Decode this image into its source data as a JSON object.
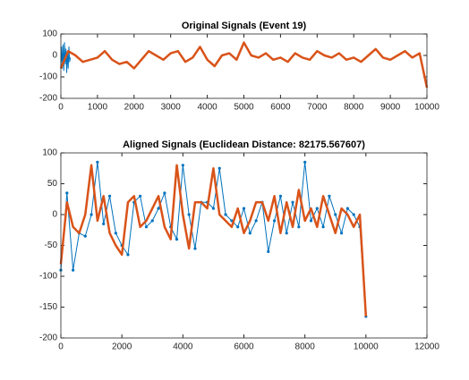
{
  "chart_data": [
    {
      "type": "line",
      "title": "Original Signals (Event 19)",
      "xlim": [
        0,
        10000
      ],
      "xticks": [
        0,
        1000,
        2000,
        3000,
        4000,
        5000,
        6000,
        7000,
        8000,
        9000,
        10000
      ],
      "ylim": [
        -200,
        100
      ],
      "yticks": [
        -200,
        -100,
        0,
        100
      ],
      "series": [
        {
          "color": "#0072bd",
          "width": 1,
          "x": [
            0,
            20,
            40,
            60,
            80,
            100,
            120,
            140,
            160,
            180,
            200,
            220,
            240,
            260
          ],
          "values": [
            -50,
            40,
            -60,
            50,
            -70,
            60,
            -40,
            30,
            -80,
            20,
            -60,
            40,
            -30,
            -10
          ]
        },
        {
          "color": "#d95319",
          "width": 2.5,
          "x": [
            0,
            200,
            400,
            600,
            800,
            1000,
            1200,
            1400,
            1600,
            1800,
            2000,
            2200,
            2400,
            2600,
            2800,
            3000,
            3200,
            3400,
            3600,
            3800,
            4000,
            4200,
            4400,
            4600,
            4800,
            5000,
            5200,
            5400,
            5600,
            5800,
            6000,
            6200,
            6400,
            6600,
            6800,
            7000,
            7200,
            7400,
            7600,
            7800,
            8000,
            8200,
            8400,
            8600,
            8800,
            9000,
            9200,
            9400,
            9600,
            9800,
            10000
          ],
          "values": [
            -60,
            20,
            0,
            -30,
            -20,
            -10,
            20,
            -20,
            -40,
            -30,
            -60,
            -20,
            20,
            0,
            -20,
            10,
            20,
            -30,
            -10,
            40,
            -20,
            -50,
            0,
            10,
            -20,
            60,
            0,
            -10,
            10,
            -20,
            -10,
            -30,
            10,
            -10,
            -20,
            20,
            0,
            -10,
            10,
            -20,
            -10,
            -30,
            0,
            30,
            -10,
            -20,
            0,
            20,
            -10,
            10,
            -150
          ]
        }
      ]
    },
    {
      "type": "line",
      "title": "Aligned Signals (Euclidean Distance: 82175.567607)",
      "xlim": [
        0,
        12000
      ],
      "xticks": [
        0,
        2000,
        4000,
        6000,
        8000,
        10000,
        12000
      ],
      "ylim": [
        -200,
        100
      ],
      "yticks": [
        -200,
        -150,
        -100,
        -50,
        0,
        50,
        100
      ],
      "series": [
        {
          "color": "#0072bd",
          "width": 1,
          "markers": true,
          "x": [
            0,
            200,
            400,
            600,
            800,
            1000,
            1200,
            1400,
            1600,
            1800,
            2000,
            2200,
            2400,
            2600,
            2800,
            3000,
            3200,
            3400,
            3600,
            3800,
            4000,
            4200,
            4400,
            4600,
            4800,
            5000,
            5200,
            5400,
            5600,
            5800,
            6000,
            6200,
            6400,
            6600,
            6800,
            7000,
            7200,
            7400,
            7600,
            7800,
            8000,
            8200,
            8400,
            8600,
            8800,
            9000,
            9200,
            9400,
            9600,
            9800,
            10000
          ],
          "values": [
            -90,
            35,
            -90,
            -30,
            -35,
            0,
            85,
            -15,
            30,
            -30,
            -50,
            -65,
            20,
            30,
            -20,
            -10,
            10,
            35,
            -20,
            -40,
            80,
            0,
            -55,
            20,
            20,
            10,
            75,
            0,
            -10,
            -20,
            10,
            -30,
            -10,
            20,
            -60,
            -10,
            30,
            -30,
            20,
            -20,
            85,
            -10,
            10,
            -20,
            30,
            0,
            -30,
            10,
            0,
            -20,
            -165
          ]
        },
        {
          "color": "#d95319",
          "width": 2.5,
          "x": [
            0,
            200,
            400,
            600,
            800,
            1000,
            1200,
            1400,
            1600,
            1800,
            2000,
            2200,
            2400,
            2600,
            2800,
            3000,
            3200,
            3400,
            3600,
            3800,
            4000,
            4200,
            4400,
            4600,
            4800,
            5000,
            5200,
            5400,
            5600,
            5800,
            6000,
            6200,
            6400,
            6600,
            6800,
            7000,
            7200,
            7400,
            7600,
            7800,
            8000,
            8200,
            8400,
            8600,
            8800,
            9000,
            9200,
            9400,
            9600,
            9800,
            10000
          ],
          "values": [
            -80,
            20,
            -20,
            -30,
            0,
            80,
            -10,
            30,
            -30,
            -50,
            -65,
            20,
            30,
            -20,
            -10,
            10,
            30,
            -20,
            -40,
            80,
            0,
            -55,
            20,
            20,
            10,
            75,
            0,
            -10,
            -20,
            10,
            -30,
            -10,
            20,
            20,
            -10,
            30,
            -30,
            20,
            -20,
            40,
            -10,
            10,
            -20,
            30,
            0,
            -30,
            10,
            0,
            -20,
            0,
            -165
          ]
        }
      ]
    }
  ]
}
